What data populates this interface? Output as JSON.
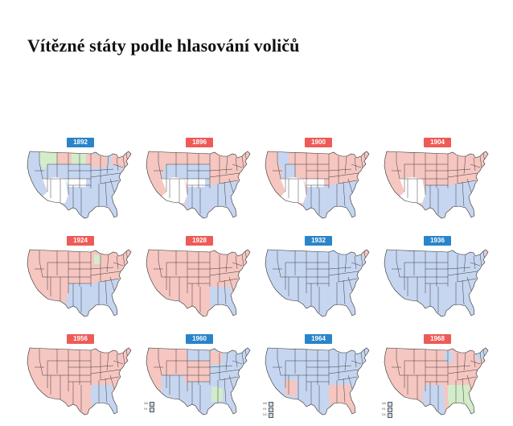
{
  "title": "Vítězné státy podle hlasování voličů",
  "colors": {
    "democrat": "#c6d6f0",
    "republican": "#f6c6c1",
    "third_party": "#d3ecc9",
    "no_data": "#ffffff",
    "badge_democrat": "#2a84c9",
    "badge_republican": "#ee5b57",
    "border": "#2b2b2b"
  },
  "maps": [
    {
      "year": "1892",
      "winner": "democrat",
      "third_party_regions": [
        "nw",
        "nc"
      ],
      "dem_regions": [
        "west_coast",
        "south",
        "southeast",
        "midatlantic"
      ],
      "rep_regions": [
        "north",
        "northeast",
        "midwest_n"
      ],
      "blank_regions": [
        "sw",
        "plains_s"
      ]
    },
    {
      "year": "1896",
      "winner": "republican",
      "third_party_regions": [],
      "dem_regions": [
        "mountain",
        "plains",
        "south",
        "southeast"
      ],
      "rep_regions": [
        "west_coast",
        "midwest",
        "northeast"
      ],
      "blank_regions": [
        "sw",
        "plains_s"
      ]
    },
    {
      "year": "1900",
      "winner": "republican",
      "third_party_regions": [],
      "dem_regions": [
        "mountain_s",
        "south",
        "southeast",
        "nw_inner"
      ],
      "rep_regions": [
        "west_coast",
        "north",
        "midwest",
        "northeast"
      ],
      "blank_regions": [
        "sw",
        "plains_s"
      ]
    },
    {
      "year": "1904",
      "winner": "republican",
      "third_party_regions": [],
      "dem_regions": [
        "south",
        "southeast"
      ],
      "rep_regions": [
        "west_coast",
        "north",
        "mountain",
        "midwest",
        "northeast",
        "plains"
      ],
      "blank_regions": [
        "sw"
      ]
    },
    {
      "year": "1924",
      "winner": "republican",
      "third_party_regions": [
        "wi"
      ],
      "dem_regions": [
        "south",
        "southeast"
      ],
      "rep_regions": [
        "west",
        "plains",
        "midwest",
        "northeast"
      ],
      "blank_regions": []
    },
    {
      "year": "1928",
      "winner": "republican",
      "third_party_regions": [],
      "dem_regions": [
        "deep_south"
      ],
      "rep_regions": [
        "west",
        "plains",
        "midwest",
        "northeast",
        "upper_south"
      ],
      "blank_regions": []
    },
    {
      "year": "1932",
      "winner": "democrat",
      "third_party_regions": [],
      "dem_regions": [
        "all"
      ],
      "rep_regions": [
        "ne_corner"
      ],
      "blank_regions": []
    },
    {
      "year": "1936",
      "winner": "democrat",
      "third_party_regions": [],
      "dem_regions": [
        "all"
      ],
      "rep_regions": [
        "ne_tip"
      ],
      "blank_regions": []
    },
    {
      "year": "1956",
      "winner": "republican",
      "third_party_regions": [],
      "dem_regions": [
        "deep_south"
      ],
      "rep_regions": [
        "west",
        "plains",
        "midwest",
        "northeast"
      ],
      "blank_regions": []
    },
    {
      "year": "1960",
      "winner": "democrat",
      "third_party_regions": [
        "ms",
        "al_part"
      ],
      "dem_regions": [
        "southwest",
        "south",
        "northeast",
        "midwest_part"
      ],
      "rep_regions": [
        "west",
        "plains",
        "upper_midwest"
      ],
      "blank_regions": [],
      "legend": [
        "AK",
        "HI"
      ]
    },
    {
      "year": "1964",
      "winner": "democrat",
      "third_party_regions": [],
      "dem_regions": [
        "all"
      ],
      "rep_regions": [
        "az",
        "deep_south"
      ],
      "blank_regions": [],
      "legend": [
        "AK",
        "HI",
        "DC"
      ]
    },
    {
      "year": "1968",
      "winner": "republican",
      "third_party_regions": [
        "deep_south"
      ],
      "dem_regions": [
        "tx",
        "mn",
        "northeast_part"
      ],
      "rep_regions": [
        "west",
        "plains",
        "midwest",
        "upper_south"
      ],
      "blank_regions": [],
      "legend": [
        "AK",
        "HI",
        "DC"
      ]
    }
  ]
}
